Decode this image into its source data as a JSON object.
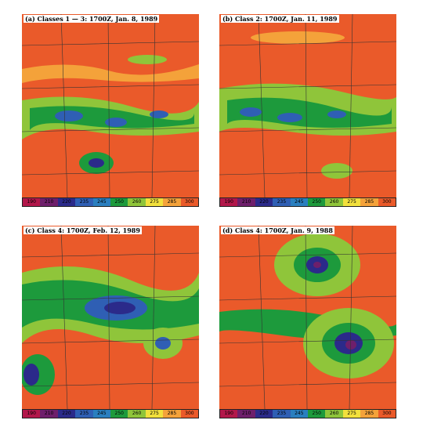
{
  "panels": [
    {
      "caption": "(a) Classes 1 — 3: 1700Z, Jan. 8, 1989"
    },
    {
      "caption": "(b) Class 2: 1700Z, Jan. 11, 1989"
    },
    {
      "caption": "(c) Class 4: 1700Z, Feb. 12, 1989"
    },
    {
      "caption": "(d) Class 4: 1700Z, Jan. 9, 1988"
    }
  ],
  "colorbar": {
    "ticks": [
      "190",
      "210",
      "220",
      "235",
      "245",
      "250",
      "260",
      "275",
      "285",
      "300"
    ],
    "colors": [
      "#b2174a",
      "#6e1f6b",
      "#2b2a8a",
      "#2f5fb4",
      "#2a7fbf",
      "#1d9a3c",
      "#8fc53a",
      "#f2e03c",
      "#f4a23a",
      "#ea5a2a"
    ]
  }
}
